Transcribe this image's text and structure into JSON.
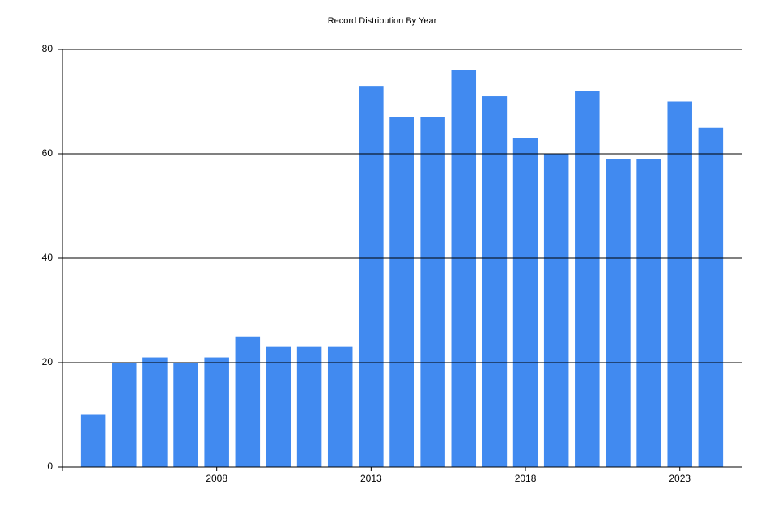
{
  "chart_data": {
    "type": "bar",
    "title": "Record Distribution By Year",
    "x": [
      2004,
      2005,
      2006,
      2007,
      2008,
      2009,
      2010,
      2011,
      2012,
      2013,
      2014,
      2015,
      2016,
      2017,
      2018,
      2019,
      2020,
      2021,
      2022,
      2023,
      2024
    ],
    "values": [
      10,
      20,
      21,
      20,
      21,
      25,
      23,
      23,
      23,
      73,
      67,
      67,
      76,
      71,
      63,
      60,
      72,
      59,
      59,
      70,
      65
    ],
    "color": "#418af0",
    "xlim": [
      2003,
      2025
    ],
    "xticks": [
      2008,
      2013,
      2018,
      2023
    ],
    "ylim": [
      0,
      80
    ],
    "yticks": [
      0,
      20,
      40,
      60,
      80
    ],
    "grid": true
  }
}
